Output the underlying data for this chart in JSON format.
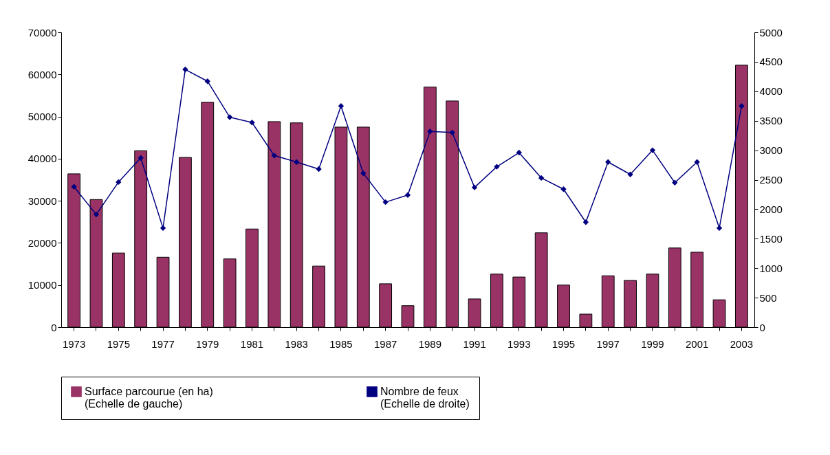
{
  "chart_data": {
    "type": "bar",
    "categories": [
      "1973",
      null,
      "1975",
      null,
      "1977",
      null,
      "1979",
      null,
      "1981",
      null,
      "1983",
      null,
      "1985",
      null,
      "1987",
      null,
      "1989",
      null,
      "1991",
      null,
      "1993",
      null,
      "1995",
      null,
      "1997",
      null,
      "1999",
      null,
      "2001",
      null,
      "2003"
    ],
    "series": [
      {
        "name": "Surface parcourue (en ha)\n (Echelle de gauche)",
        "color": "#993366",
        "values": [
          36400,
          30300,
          17600,
          41900,
          16600,
          40300,
          53400,
          16200,
          23300,
          48800,
          48500,
          14500,
          47500,
          47500,
          10300,
          5100,
          57000,
          53700,
          6700,
          12600,
          11900,
          22400,
          10000,
          3100,
          12200,
          11100,
          12600,
          18800,
          17800,
          6500,
          62200
        ]
      },
      {
        "name": "Nombre de feux\n(Echelle de droite)",
        "type": "line",
        "axis": "y2",
        "color": "#000080",
        "values": [
          2380,
          1910,
          2460,
          2870,
          1680,
          4370,
          4170,
          3560,
          3470,
          2910,
          2800,
          2680,
          3750,
          2610,
          2120,
          2240,
          3320,
          3300,
          2370,
          2720,
          2960,
          2530,
          2340,
          1780,
          2800,
          2590,
          3000,
          2450,
          2800,
          1680,
          3750
        ]
      }
    ],
    "ylim": [
      0,
      70000
    ],
    "yticks": [
      0,
      10000,
      20000,
      30000,
      40000,
      50000,
      60000,
      70000
    ],
    "y2lim": [
      0,
      5000
    ],
    "y2ticks": [
      0,
      500,
      1000,
      1500,
      2000,
      2500,
      3000,
      3500,
      4000,
      4500,
      5000
    ],
    "marker": "diamond",
    "legend": "bottom"
  }
}
